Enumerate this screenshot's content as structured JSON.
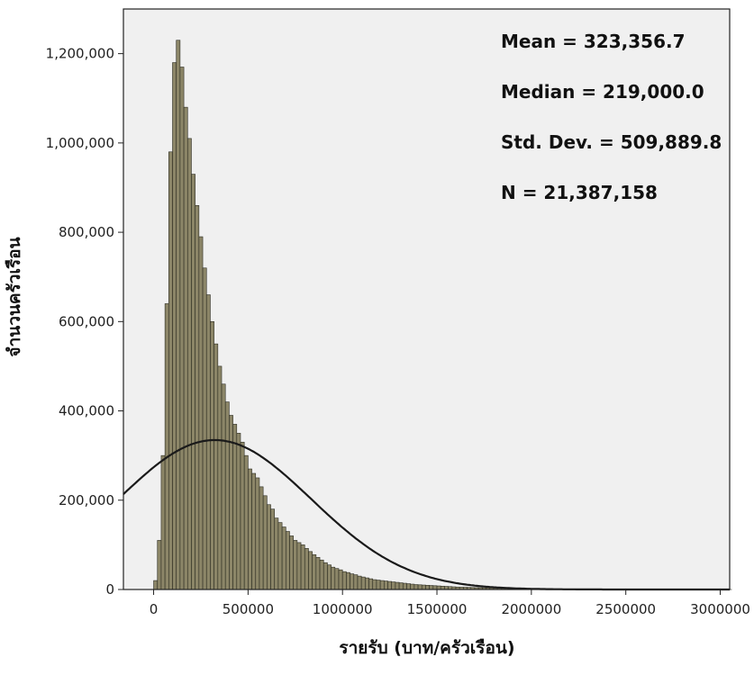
{
  "chart_data": {
    "type": "bar",
    "xlabel": "รายรับ (บาท/ครัวเรือน)",
    "ylabel": "จำนวนครัวเรือน",
    "xlim": [
      -160000,
      3050000
    ],
    "ylim": [
      0,
      1300000
    ],
    "x_ticks": [
      0,
      500000,
      1000000,
      1500000,
      2000000,
      2500000,
      3000000
    ],
    "x_tick_labels": [
      "0",
      "500000",
      "1000000",
      "1500000",
      "2000000",
      "2500000",
      "3000000"
    ],
    "y_ticks": [
      0,
      200000,
      400000,
      600000,
      800000,
      1000000,
      1200000
    ],
    "y_tick_labels": [
      "0",
      "200,000",
      "400,000",
      "600,000",
      "800,000",
      "1,000,000",
      "1,200,000"
    ],
    "bin_width": 20000,
    "bins_start": 0,
    "values": [
      20000,
      110000,
      300000,
      640000,
      980000,
      1180000,
      1230000,
      1170000,
      1080000,
      1010000,
      930000,
      860000,
      790000,
      720000,
      660000,
      600000,
      550000,
      500000,
      460000,
      420000,
      390000,
      370000,
      350000,
      330000,
      300000,
      270000,
      260000,
      250000,
      230000,
      210000,
      190000,
      180000,
      160000,
      150000,
      140000,
      130000,
      120000,
      110000,
      105000,
      100000,
      92000,
      85000,
      78000,
      72000,
      66000,
      60000,
      55000,
      50000,
      47000,
      44000,
      40000,
      38000,
      35000,
      33000,
      30000,
      28000,
      26000,
      24000,
      22000,
      21000,
      20000,
      19000,
      18000,
      17000,
      16000,
      15000,
      14000,
      13000,
      12000,
      11000,
      10500,
      10000,
      9500,
      9000,
      8500,
      8000,
      7500,
      7000,
      6500,
      6000,
      5500,
      5200,
      5000,
      4800,
      4500,
      4200,
      4000,
      3800,
      3600,
      3400,
      3200,
      3000,
      2800,
      2600,
      2400,
      2200,
      2000,
      1900,
      1800,
      1700,
      1600,
      1500,
      1400,
      1300,
      1200,
      1100,
      1000,
      950,
      900,
      850,
      800,
      750,
      700,
      650,
      600,
      550,
      500,
      480,
      460,
      440,
      420,
      400,
      380,
      360,
      340,
      320,
      300,
      290,
      280,
      270,
      260,
      250,
      240,
      230,
      220,
      210,
      200,
      190,
      180,
      170,
      160,
      150,
      140,
      130,
      120,
      110,
      100,
      95,
      90,
      85,
      80,
      75,
      70
    ],
    "normal_curve": {
      "mean": 323356.7,
      "std": 509889.8,
      "n": 21387158
    },
    "stats": [
      "Mean = 323,356.7",
      "Median = 219,000.0",
      "Std. Dev. = 509,889.8",
      "N = 21,387,158"
    ],
    "colors": {
      "bar_fill": "#8c8668",
      "bar_stroke": "#2b2b20",
      "plot_bg": "#f0f0f0",
      "curve": "#1a1a1a",
      "frame": "#222222"
    }
  }
}
